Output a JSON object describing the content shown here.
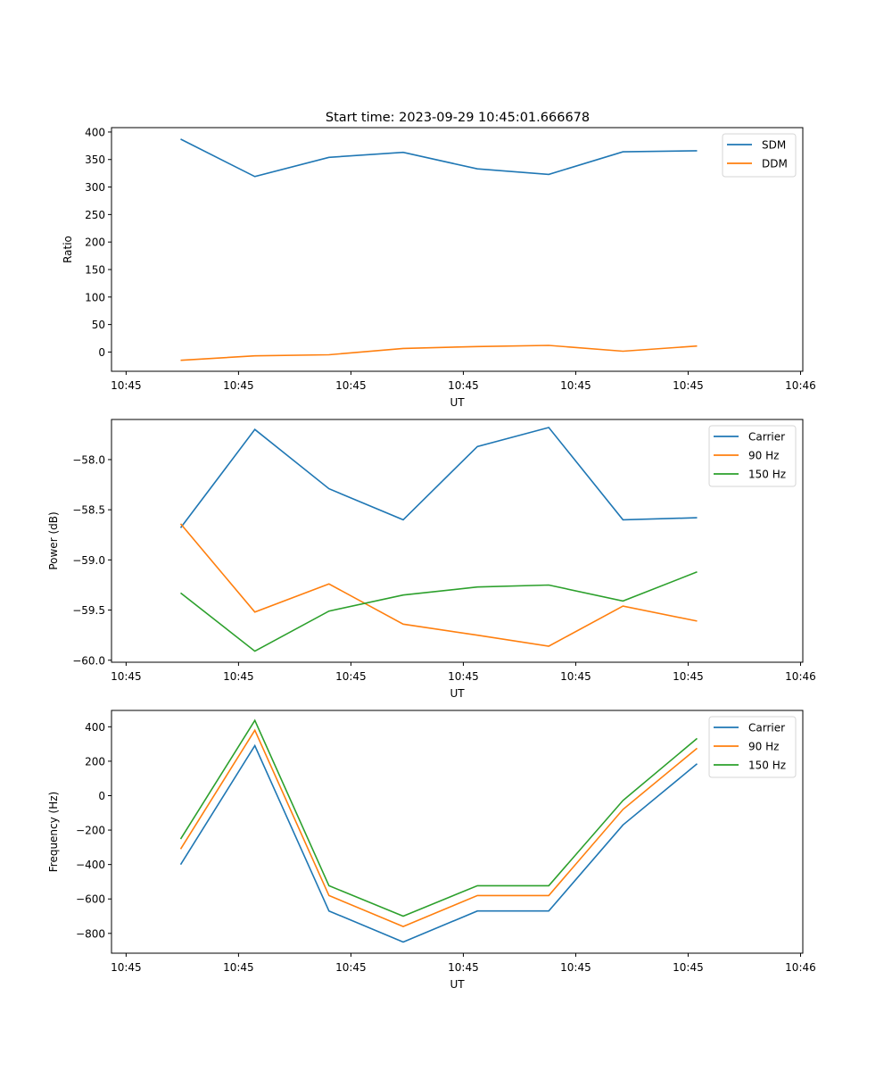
{
  "figure": {
    "title": "Start time: 2023-09-29 10:45:01.666678"
  },
  "chart_data": [
    {
      "type": "line",
      "title": "Start time: 2023-09-29 10:45:01.666678",
      "xlabel": "UT",
      "ylabel": "Ratio",
      "x_tick_labels": [
        "10:45",
        "10:45",
        "10:45",
        "10:45",
        "10:45",
        "10:45",
        "10:46"
      ],
      "x": [
        0.485,
        1.145,
        1.805,
        2.465,
        3.125,
        3.76,
        4.42,
        5.08
      ],
      "xlim": [
        -0.13,
        6.02
      ],
      "y_ticks": [
        0,
        50,
        100,
        150,
        200,
        250,
        300,
        350,
        400
      ],
      "ylim": [
        -35,
        408
      ],
      "grid": false,
      "legend": "top-right",
      "series": [
        {
          "name": "SDM",
          "color": "#1f77b4",
          "values": [
            387,
            319,
            354,
            363,
            333,
            323,
            364,
            366
          ]
        },
        {
          "name": "DDM",
          "color": "#ff7f0e",
          "values": [
            -15,
            -7,
            -5,
            6.5,
            10,
            12,
            1.5,
            11
          ]
        }
      ]
    },
    {
      "type": "line",
      "title": "",
      "xlabel": "UT",
      "ylabel": "Power (dB)",
      "x_tick_labels": [
        "10:45",
        "10:45",
        "10:45",
        "10:45",
        "10:45",
        "10:45",
        "10:46"
      ],
      "x": [
        0.485,
        1.145,
        1.805,
        2.465,
        3.125,
        3.76,
        4.42,
        5.08
      ],
      "xlim": [
        -0.13,
        6.02
      ],
      "y_ticks": [
        -60.0,
        -59.5,
        -59.0,
        -58.5,
        -58.0
      ],
      "y_tick_labels": [
        "−60.0",
        "−59.5",
        "−59.0",
        "−58.5",
        "−58.0"
      ],
      "ylim": [
        -60.02,
        -57.6
      ],
      "grid": false,
      "legend": "top-right",
      "series": [
        {
          "name": "Carrier",
          "color": "#1f77b4",
          "values": [
            -58.68,
            -57.7,
            -58.29,
            -58.6,
            -57.87,
            -57.68,
            -58.6,
            -58.58
          ]
        },
        {
          "name": "90 Hz",
          "color": "#ff7f0e",
          "values": [
            -58.64,
            -59.52,
            -59.24,
            -59.64,
            -59.75,
            -59.86,
            -59.46,
            -59.61
          ]
        },
        {
          "name": "150 Hz",
          "color": "#2ca02c",
          "values": [
            -59.33,
            -59.91,
            -59.51,
            -59.35,
            -59.27,
            -59.25,
            -59.41,
            -59.12
          ]
        }
      ]
    },
    {
      "type": "line",
      "title": "",
      "xlabel": "UT",
      "ylabel": "Frequency (Hz)",
      "x_tick_labels": [
        "10:45",
        "10:45",
        "10:45",
        "10:45",
        "10:45",
        "10:45",
        "10:46"
      ],
      "x": [
        0.485,
        1.145,
        1.805,
        2.465,
        3.125,
        3.76,
        4.42,
        5.08
      ],
      "xlim": [
        -0.13,
        6.02
      ],
      "y_ticks": [
        -800,
        -600,
        -400,
        -200,
        0,
        200,
        400
      ],
      "y_tick_labels": [
        "−800",
        "−600",
        "−400",
        "−200",
        "0",
        "200",
        "400"
      ],
      "ylim": [
        -915,
        495
      ],
      "grid": false,
      "legend": "top-right",
      "series": [
        {
          "name": "Carrier",
          "color": "#1f77b4",
          "values": [
            -400,
            290,
            -670,
            -850,
            -670,
            -670,
            -170,
            185
          ]
        },
        {
          "name": "90 Hz",
          "color": "#ff7f0e",
          "values": [
            -310,
            380,
            -580,
            -760,
            -580,
            -580,
            -80,
            275
          ]
        },
        {
          "name": "150 Hz",
          "color": "#2ca02c",
          "values": [
            -252,
            437,
            -523,
            -700,
            -523,
            -523,
            -28,
            332
          ]
        }
      ]
    }
  ]
}
